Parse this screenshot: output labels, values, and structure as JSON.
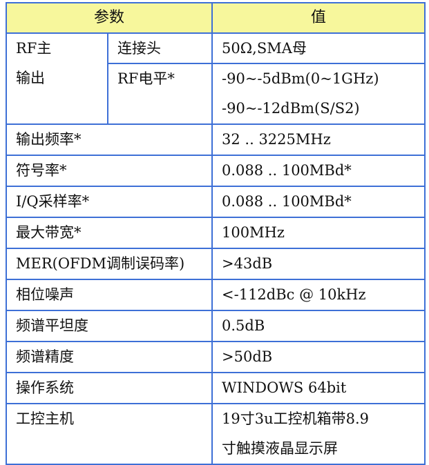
{
  "header": {
    "param": "参数",
    "value": "值"
  },
  "rf": {
    "group": [
      "RF主",
      "输出"
    ],
    "sub": [
      {
        "name": "连接头",
        "value": [
          "50Ω,SMA母"
        ]
      },
      {
        "name": "RF电平*",
        "value": [
          "-90~-5dBm(0~1GHz)",
          "-90~-12dBm(S/S2)"
        ]
      }
    ]
  },
  "rows": [
    {
      "name": "输出频率*",
      "value": [
        "32 .. 3225MHz"
      ]
    },
    {
      "name": "符号率*",
      "value": [
        "0.088 .. 100MBd*"
      ]
    },
    {
      "name": "I/Q采样率*",
      "value": [
        "0.088 .. 100MBd*"
      ]
    },
    {
      "name": "最大带宽*",
      "value": [
        "100MHz"
      ]
    },
    {
      "name": "MER(OFDM调制误码率)",
      "value": [
        ">43dB"
      ]
    },
    {
      "name": "相位噪声",
      "value": [
        "<-112dBc @ 10kHz"
      ]
    },
    {
      "name": "频谱平坦度",
      "value": [
        "0.5dB"
      ]
    },
    {
      "name": "频谱精度",
      "value": [
        ">50dB"
      ]
    },
    {
      "name": "操作系统",
      "value": [
        "WINDOWS 64bit"
      ]
    },
    {
      "name": "工控主机",
      "value": [
        "19寸3u工控机箱带8.9",
        "寸触摸液晶显示屏"
      ]
    }
  ],
  "colors": {
    "border": "#3d6fd6",
    "header_bg": "#f7f79c"
  }
}
